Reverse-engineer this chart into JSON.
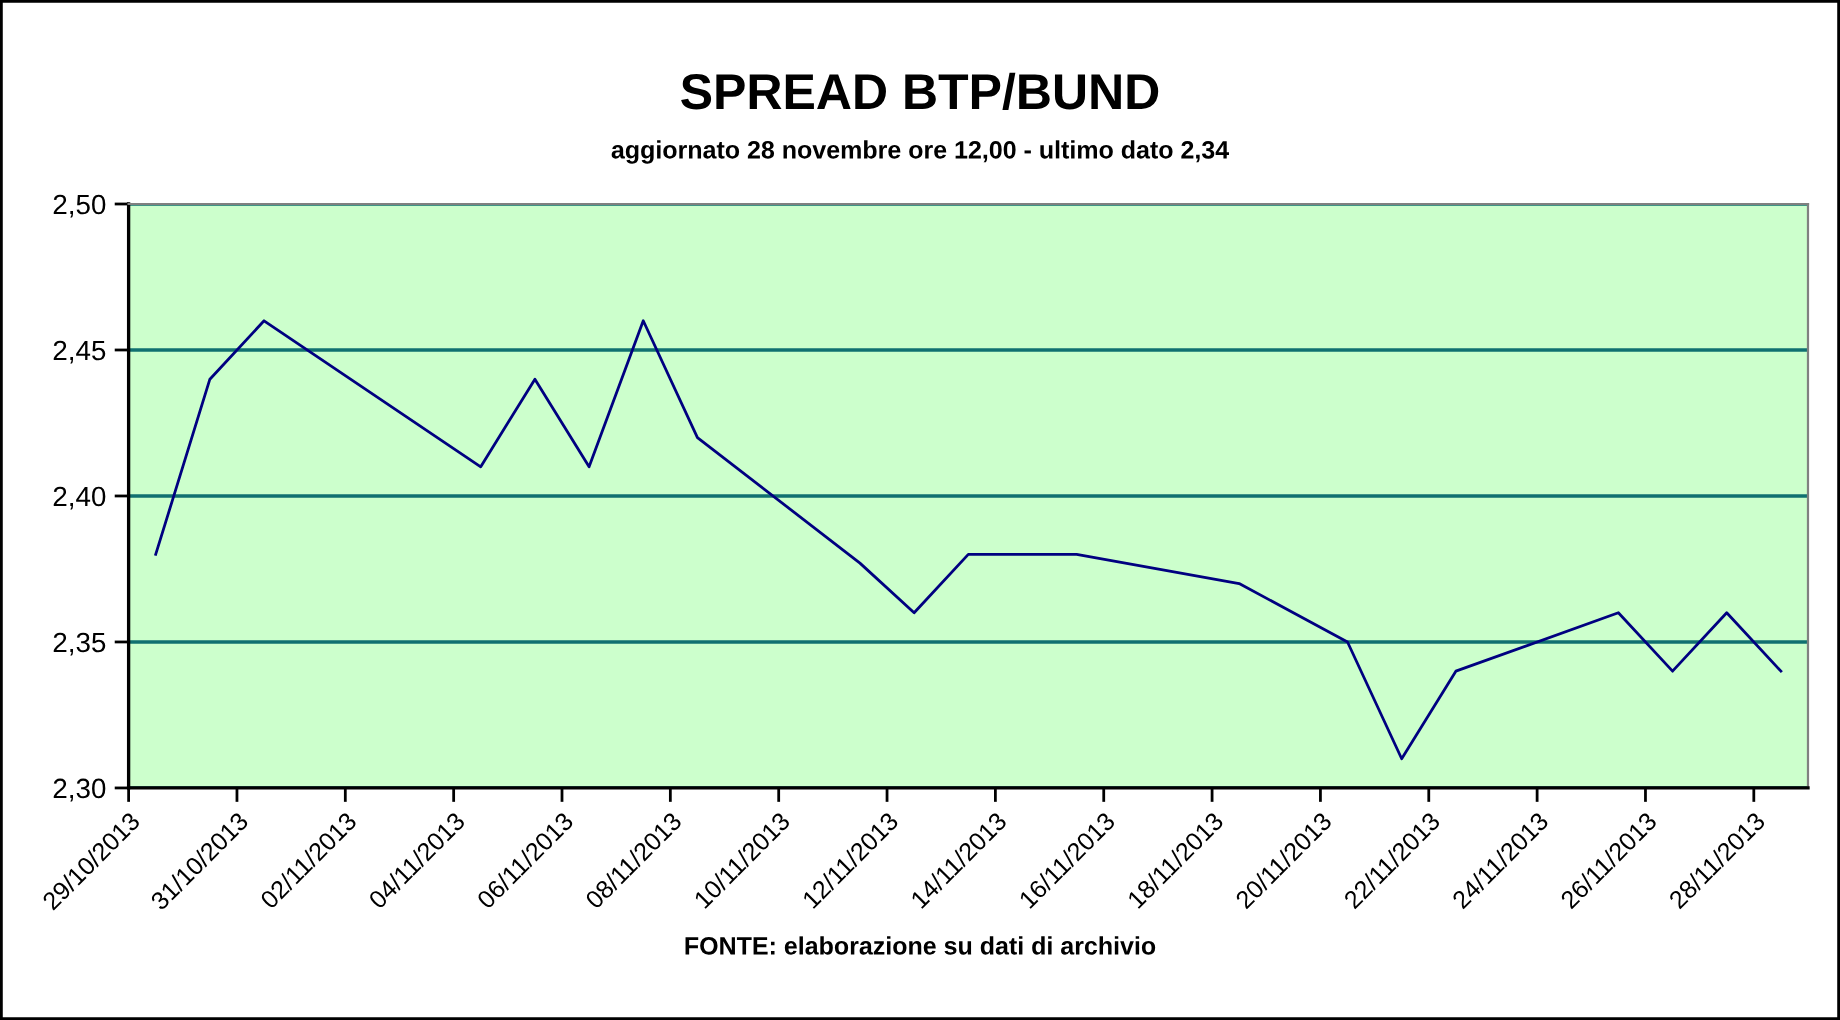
{
  "chart_data": {
    "type": "line",
    "title": "SPREAD BTP/BUND",
    "subtitle": "aggiornato 28 novembre ore 12,00 - ultimo dato 2,34",
    "annotations": [
      "FONTE: elaborazione su dati di archivio"
    ],
    "series": [
      {
        "color": "#000080",
        "x": [
          "2013-10-29T12:00",
          "2013-10-30T12:00",
          "2013-10-31T12:00",
          "2013-11-04T12:00",
          "2013-11-05T12:00",
          "2013-11-06T12:00",
          "2013-11-07T12:00",
          "2013-11-08T12:00",
          "2013-11-11T12:00",
          "2013-11-12T12:00",
          "2013-11-13T12:00",
          "2013-11-14T12:00",
          "2013-11-15T12:00",
          "2013-11-18T12:00",
          "2013-11-19T12:00",
          "2013-11-20T12:00",
          "2013-11-21T12:00",
          "2013-11-22T12:00",
          "2013-11-25T12:00",
          "2013-11-26T12:00",
          "2013-11-27T12:00",
          "2013-11-28T12:00"
        ],
        "values": [
          2.38,
          2.44,
          2.46,
          2.41,
          2.44,
          2.41,
          2.46,
          2.42,
          2.377,
          2.36,
          2.38,
          2.38,
          2.38,
          2.37,
          2.36,
          2.35,
          2.31,
          2.34,
          2.36,
          2.34,
          2.36,
          2.34
        ]
      }
    ],
    "xlim": [
      "2013-10-29",
      "2013-11-29"
    ],
    "xticks": [
      {
        "value": "2013-10-29",
        "label": "29/10/2013"
      },
      {
        "value": "2013-10-31",
        "label": "31/10/2013"
      },
      {
        "value": "2013-11-02",
        "label": "02/11/2013"
      },
      {
        "value": "2013-11-04",
        "label": "04/11/2013"
      },
      {
        "value": "2013-11-06",
        "label": "06/11/2013"
      },
      {
        "value": "2013-11-08",
        "label": "08/11/2013"
      },
      {
        "value": "2013-11-10",
        "label": "10/11/2013"
      },
      {
        "value": "2013-11-12",
        "label": "12/11/2013"
      },
      {
        "value": "2013-11-14",
        "label": "14/11/2013"
      },
      {
        "value": "2013-11-16",
        "label": "16/11/2013"
      },
      {
        "value": "2013-11-18",
        "label": "18/11/2013"
      },
      {
        "value": "2013-11-20",
        "label": "20/11/2013"
      },
      {
        "value": "2013-11-22",
        "label": "22/11/2013"
      },
      {
        "value": "2013-11-24",
        "label": "24/11/2013"
      },
      {
        "value": "2013-11-26",
        "label": "26/11/2013"
      },
      {
        "value": "2013-11-28",
        "label": "28/11/2013"
      }
    ],
    "ylim": [
      2.3,
      2.5
    ],
    "yticks": [
      {
        "value": 2.3,
        "label": "2,30"
      },
      {
        "value": 2.35,
        "label": "2,35"
      },
      {
        "value": 2.4,
        "label": "2,40"
      },
      {
        "value": 2.45,
        "label": "2,45"
      },
      {
        "value": 2.5,
        "label": "2,50"
      }
    ],
    "grid": "y",
    "marker": "none",
    "line_style": "solid"
  }
}
